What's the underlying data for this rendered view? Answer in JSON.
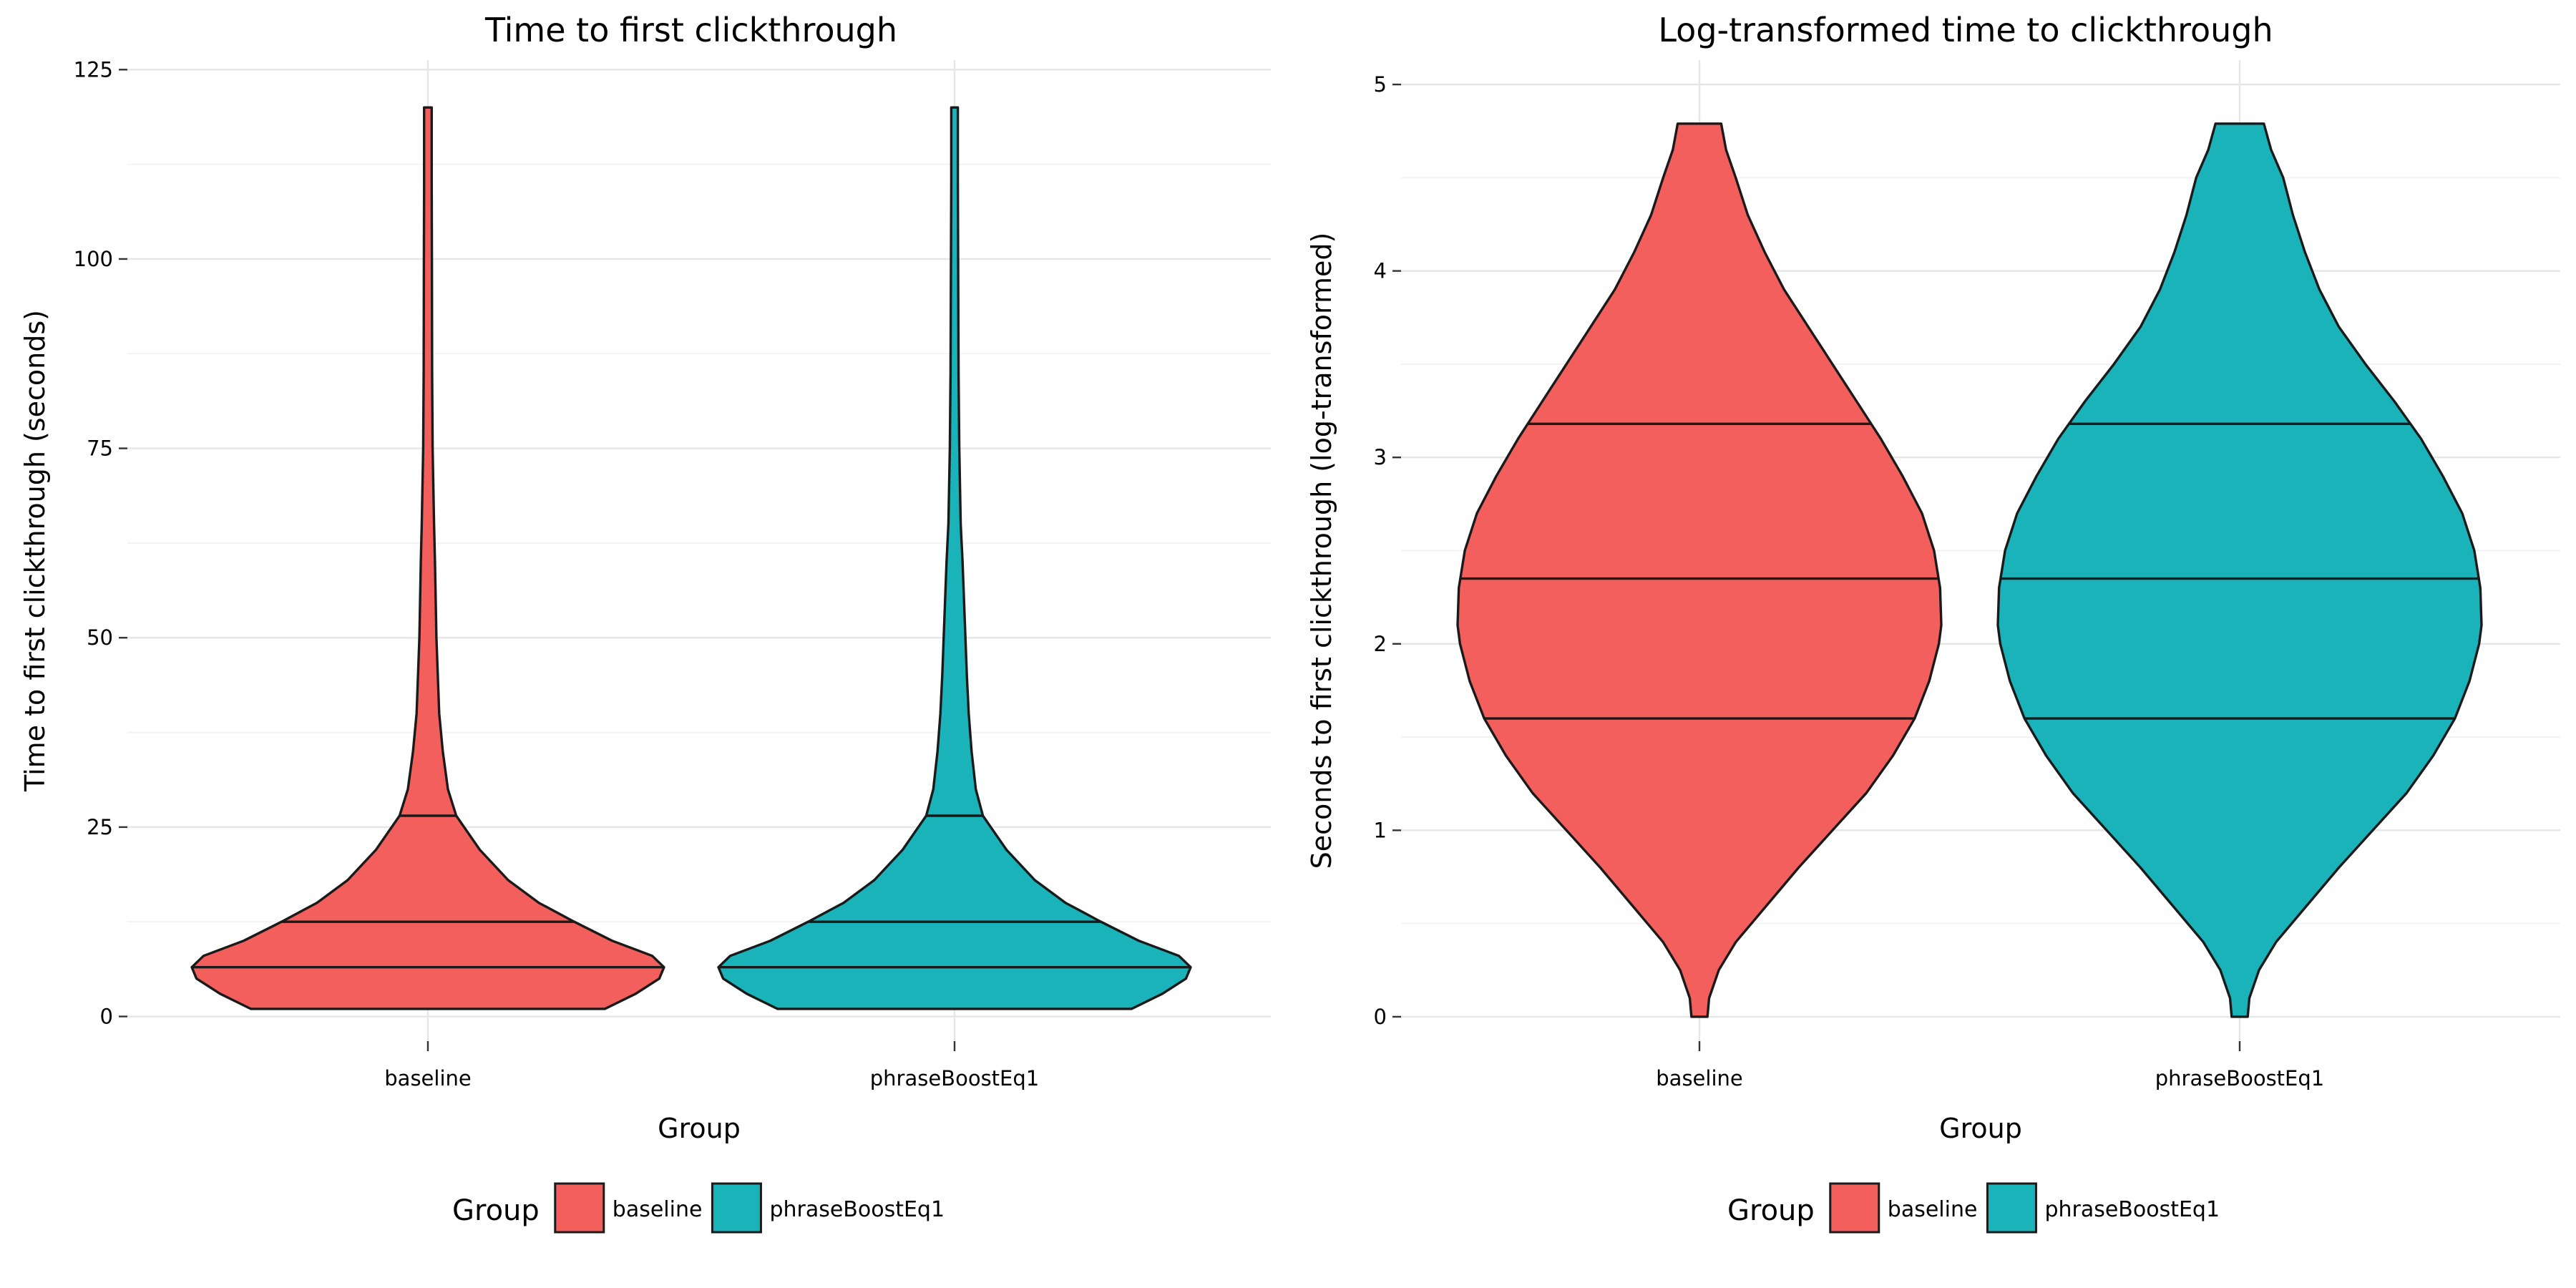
{
  "chart_data": [
    {
      "type": "violin",
      "title": "Time to first clickthrough",
      "xlabel": "Group",
      "ylabel": "Time to first clickthrough (seconds)",
      "ylim": [
        -2.5,
        125.5
      ],
      "yticks": [
        0,
        25,
        50,
        75,
        100,
        125
      ],
      "ytick_labels": [
        "0",
        "25",
        "50",
        "75",
        "100",
        "125"
      ],
      "categories": [
        "baseline",
        "phraseBoostEq1"
      ],
      "quantiles": [
        0.25,
        0.5,
        0.75
      ],
      "grid": true,
      "legend": {
        "title": "Group",
        "position": "bottom"
      },
      "series": [
        {
          "name": "baseline",
          "color": "#F25F5C",
          "quantile_values": [
            6.5,
            12.5,
            26.5
          ],
          "density": [
            [
              1,
              0.75
            ],
            [
              3,
              0.88
            ],
            [
              5,
              0.98
            ],
            [
              6.5,
              1.0
            ],
            [
              8,
              0.95
            ],
            [
              10,
              0.78
            ],
            [
              12.5,
              0.62
            ],
            [
              15,
              0.47
            ],
            [
              18,
              0.34
            ],
            [
              22,
              0.22
            ],
            [
              26.5,
              0.12
            ],
            [
              30,
              0.085
            ],
            [
              35,
              0.063
            ],
            [
              40,
              0.048
            ],
            [
              50,
              0.036
            ],
            [
              60,
              0.03
            ],
            [
              65,
              0.026
            ],
            [
              75,
              0.02
            ],
            [
              85,
              0.018
            ],
            [
              100,
              0.017
            ],
            [
              110,
              0.016
            ],
            [
              120,
              0.016
            ]
          ]
        },
        {
          "name": "phraseBoostEq1",
          "color": "#19B3B9",
          "quantile_values": [
            6.5,
            12.5,
            26.5
          ],
          "density": [
            [
              1,
              0.75
            ],
            [
              3,
              0.88
            ],
            [
              5,
              0.98
            ],
            [
              6.5,
              1.0
            ],
            [
              8,
              0.95
            ],
            [
              10,
              0.78
            ],
            [
              12.5,
              0.62
            ],
            [
              15,
              0.47
            ],
            [
              18,
              0.34
            ],
            [
              22,
              0.22
            ],
            [
              26.5,
              0.12
            ],
            [
              30,
              0.09
            ],
            [
              35,
              0.072
            ],
            [
              40,
              0.06
            ],
            [
              45,
              0.052
            ],
            [
              50,
              0.046
            ],
            [
              55,
              0.04
            ],
            [
              60,
              0.034
            ],
            [
              65,
              0.026
            ],
            [
              75,
              0.02
            ],
            [
              85,
              0.017
            ],
            [
              100,
              0.015
            ],
            [
              110,
              0.014
            ],
            [
              120,
              0.014
            ]
          ]
        }
      ]
    },
    {
      "type": "violin",
      "title": "Log-transformed time to clickthrough",
      "xlabel": "Group",
      "ylabel": "Seconds to first clickthrough (log-transformed)",
      "ylim": [
        -0.1,
        5.1
      ],
      "yticks": [
        0,
        1,
        2,
        3,
        4,
        5
      ],
      "ytick_labels": [
        "0",
        "1",
        "2",
        "3",
        "4",
        "5"
      ],
      "categories": [
        "baseline",
        "phraseBoostEq1"
      ],
      "quantiles": [
        0.25,
        0.5,
        0.75
      ],
      "grid": true,
      "legend": {
        "title": "Group",
        "position": "bottom"
      },
      "series": [
        {
          "name": "baseline",
          "color": "#F25F5C",
          "quantile_values": [
            1.6,
            2.35,
            3.18
          ],
          "density": [
            [
              0,
              0.033
            ],
            [
              0.1,
              0.04
            ],
            [
              0.25,
              0.08
            ],
            [
              0.4,
              0.15
            ],
            [
              0.6,
              0.28
            ],
            [
              0.8,
              0.41
            ],
            [
              1.0,
              0.55
            ],
            [
              1.2,
              0.69
            ],
            [
              1.4,
              0.8
            ],
            [
              1.6,
              0.89
            ],
            [
              1.8,
              0.95
            ],
            [
              2.0,
              0.99
            ],
            [
              2.1,
              1.0
            ],
            [
              2.3,
              0.995
            ],
            [
              2.5,
              0.97
            ],
            [
              2.7,
              0.92
            ],
            [
              2.9,
              0.84
            ],
            [
              3.1,
              0.75
            ],
            [
              3.3,
              0.65
            ],
            [
              3.5,
              0.55
            ],
            [
              3.7,
              0.45
            ],
            [
              3.9,
              0.35
            ],
            [
              4.1,
              0.27
            ],
            [
              4.3,
              0.2
            ],
            [
              4.5,
              0.15
            ],
            [
              4.65,
              0.11
            ],
            [
              4.79,
              0.09
            ]
          ]
        },
        {
          "name": "phraseBoostEq1",
          "color": "#19B3B9",
          "quantile_values": [
            1.6,
            2.35,
            3.18
          ],
          "density": [
            [
              0,
              0.033
            ],
            [
              0.1,
              0.04
            ],
            [
              0.25,
              0.08
            ],
            [
              0.4,
              0.15
            ],
            [
              0.6,
              0.28
            ],
            [
              0.8,
              0.41
            ],
            [
              1.0,
              0.55
            ],
            [
              1.2,
              0.69
            ],
            [
              1.4,
              0.8
            ],
            [
              1.6,
              0.89
            ],
            [
              1.8,
              0.95
            ],
            [
              2.0,
              0.99
            ],
            [
              2.1,
              1.0
            ],
            [
              2.3,
              0.995
            ],
            [
              2.5,
              0.97
            ],
            [
              2.7,
              0.92
            ],
            [
              2.9,
              0.84
            ],
            [
              3.1,
              0.75
            ],
            [
              3.3,
              0.64
            ],
            [
              3.5,
              0.52
            ],
            [
              3.7,
              0.41
            ],
            [
              3.9,
              0.33
            ],
            [
              4.1,
              0.27
            ],
            [
              4.3,
              0.22
            ],
            [
              4.5,
              0.18
            ],
            [
              4.65,
              0.13
            ],
            [
              4.79,
              0.1
            ]
          ]
        }
      ]
    }
  ]
}
